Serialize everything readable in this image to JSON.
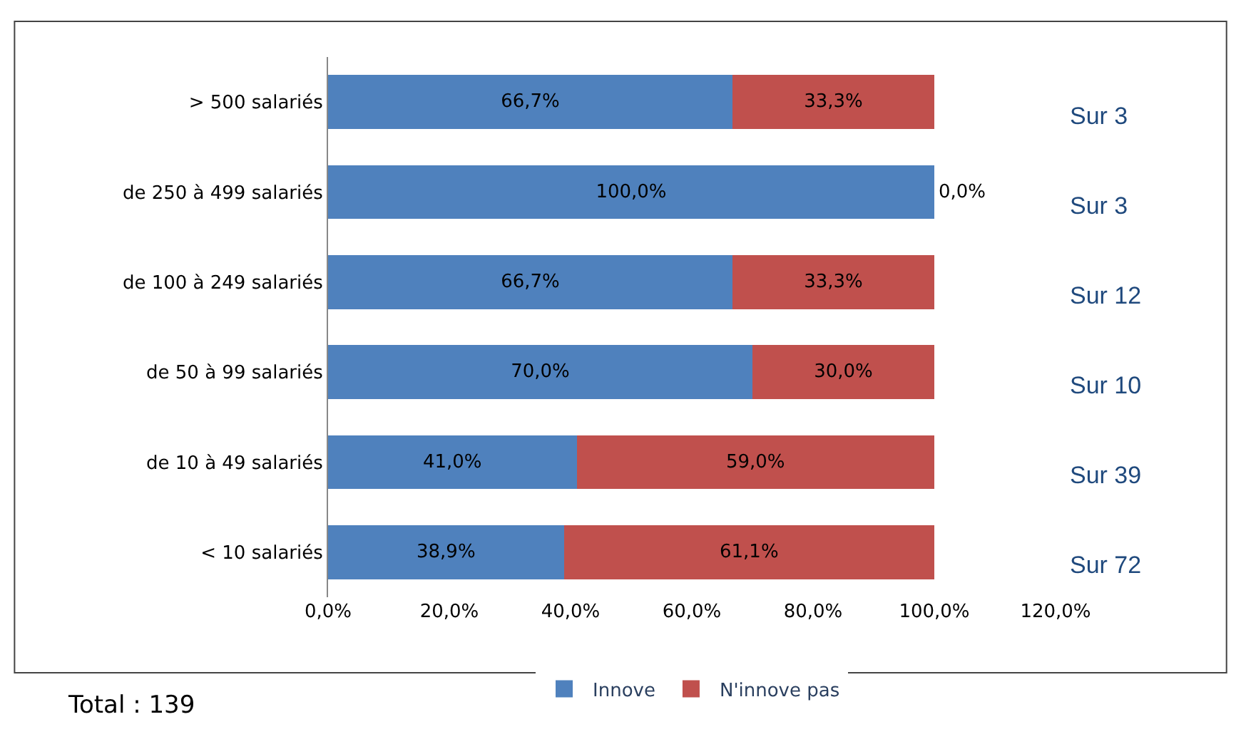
{
  "chart_data": {
    "type": "bar",
    "orientation": "horizontal",
    "stacked": true,
    "categories": [
      "> 500 salariés",
      "de 250 à 499 salariés",
      "de 100 à 249 salariés",
      "de 50 à 99 salariés",
      "de 10 à 49 salariés",
      "< 10 salariés"
    ],
    "series": [
      {
        "name": "Innove",
        "color": "#4f81bd",
        "values": [
          66.7,
          100.0,
          66.7,
          70.0,
          41.0,
          38.9
        ],
        "value_labels": [
          "66,7%",
          "100,0%",
          "66,7%",
          "70,0%",
          "41,0%",
          "38,9%"
        ]
      },
      {
        "name": "N'innove pas",
        "color": "#c0504d",
        "values": [
          33.3,
          0.0,
          33.3,
          30.0,
          59.0,
          61.1
        ],
        "value_labels": [
          "33,3%",
          "0,0%",
          "33,3%",
          "30,0%",
          "59,0%",
          "61,1%"
        ]
      }
    ],
    "xlim": [
      0,
      120
    ],
    "xticks": [
      {
        "value": 0,
        "label": "0,0%"
      },
      {
        "value": 20,
        "label": "20,0%"
      },
      {
        "value": 40,
        "label": "40,0%"
      },
      {
        "value": 60,
        "label": "60,0%"
      },
      {
        "value": 80,
        "label": "80,0%"
      },
      {
        "value": 100,
        "label": "100,0%"
      },
      {
        "value": 120,
        "label": "120,0%"
      }
    ],
    "annotations": [
      "Sur 3",
      "Sur 3",
      "Sur 12",
      "Sur 10",
      "Sur 39",
      "Sur 72",
      "Total : 139"
    ],
    "legend": "bottom"
  }
}
